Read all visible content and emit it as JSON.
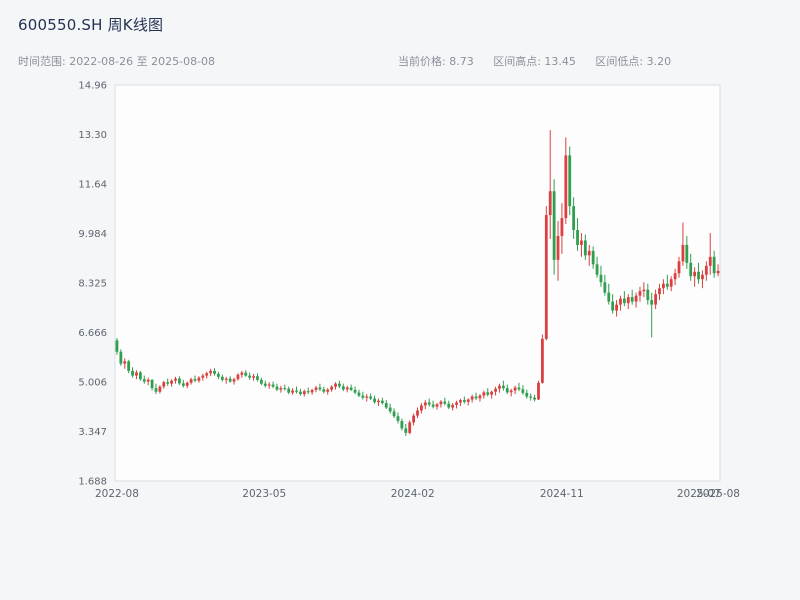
{
  "header": {
    "title": "600550.SH 周K线图",
    "date_range": "时间范围: 2022-08-26 至 2025-08-08",
    "current_price": "当前价格: 8.73",
    "range_high": "区间高点: 13.45",
    "range_low": "区间低点: 3.20"
  },
  "chart_data": {
    "type": "candlestick",
    "title": "600550.SH 周K线图",
    "interval": "weekly",
    "start_date": "2022-08-26",
    "end_date": "2025-08-08",
    "current_price": 8.73,
    "range_high": 13.45,
    "range_low": 3.2,
    "ylim": [
      1.688,
      14.96
    ],
    "y_ticks": [
      {
        "label": "14.96",
        "value": 14.96
      },
      {
        "label": "13.30",
        "value": 13.3
      },
      {
        "label": "11.64",
        "value": 11.64
      },
      {
        "label": "9.984",
        "value": 9.984
      },
      {
        "label": "8.325",
        "value": 8.325
      },
      {
        "label": "6.666",
        "value": 6.666
      },
      {
        "label": "5.006",
        "value": 5.006
      },
      {
        "label": "3.347",
        "value": 3.347
      },
      {
        "label": "1.688",
        "value": 1.688
      }
    ],
    "x_ticks": [
      {
        "label": "2022-08",
        "pos": 0.0
      },
      {
        "label": "2023-05",
        "pos": 0.245
      },
      {
        "label": "2024-02",
        "pos": 0.492
      },
      {
        "label": "2024-11",
        "pos": 0.74
      },
      {
        "label": "2025-07",
        "pos": 0.968
      },
      {
        "label": "2025-08",
        "pos": 1.0
      }
    ],
    "up_color": "#db4040",
    "down_color": "#2f9e4f",
    "axis_color": "#5c6670",
    "plot_bg": "#fdfdfe",
    "plot_border": "#d8dce2",
    "candles": [
      [
        6.4,
        6.48,
        5.92,
        6.02
      ],
      [
        6.02,
        6.1,
        5.55,
        5.62
      ],
      [
        5.62,
        5.8,
        5.45,
        5.7
      ],
      [
        5.7,
        5.75,
        5.3,
        5.38
      ],
      [
        5.38,
        5.5,
        5.15,
        5.22
      ],
      [
        5.22,
        5.4,
        5.1,
        5.33
      ],
      [
        5.33,
        5.38,
        5.05,
        5.1
      ],
      [
        5.1,
        5.22,
        4.95,
        5.02
      ],
      [
        5.02,
        5.15,
        4.9,
        5.08
      ],
      [
        5.08,
        5.1,
        4.72,
        4.8
      ],
      [
        4.8,
        4.95,
        4.6,
        4.68
      ],
      [
        4.68,
        4.9,
        4.62,
        4.85
      ],
      [
        4.85,
        5.05,
        4.78,
        5.0
      ],
      [
        5.0,
        5.12,
        4.88,
        4.95
      ],
      [
        4.95,
        5.1,
        4.85,
        5.05
      ],
      [
        5.05,
        5.18,
        4.95,
        5.12
      ],
      [
        5.12,
        5.2,
        4.9,
        4.96
      ],
      [
        4.96,
        5.08,
        4.82,
        4.88
      ],
      [
        4.88,
        5.02,
        4.8,
        4.98
      ],
      [
        4.98,
        5.15,
        4.92,
        5.1
      ],
      [
        5.1,
        5.22,
        5.0,
        5.05
      ],
      [
        5.05,
        5.2,
        4.98,
        5.15
      ],
      [
        5.15,
        5.28,
        5.05,
        5.22
      ],
      [
        5.22,
        5.35,
        5.12,
        5.3
      ],
      [
        5.3,
        5.45,
        5.2,
        5.38
      ],
      [
        5.38,
        5.47,
        5.22,
        5.28
      ],
      [
        5.28,
        5.35,
        5.1,
        5.18
      ],
      [
        5.18,
        5.25,
        5.02,
        5.08
      ],
      [
        5.08,
        5.18,
        4.95,
        5.12
      ],
      [
        5.12,
        5.2,
        4.98,
        5.02
      ],
      [
        5.02,
        5.15,
        4.92,
        5.1
      ],
      [
        5.1,
        5.3,
        5.05,
        5.25
      ],
      [
        5.25,
        5.38,
        5.15,
        5.32
      ],
      [
        5.32,
        5.4,
        5.18,
        5.22
      ],
      [
        5.22,
        5.32,
        5.08,
        5.15
      ],
      [
        5.15,
        5.28,
        5.05,
        5.2
      ],
      [
        5.2,
        5.3,
        5.02,
        5.08
      ],
      [
        5.08,
        5.15,
        4.9,
        4.95
      ],
      [
        4.95,
        5.05,
        4.82,
        4.88
      ],
      [
        4.88,
        5.0,
        4.78,
        4.92
      ],
      [
        4.92,
        5.02,
        4.8,
        4.85
      ],
      [
        4.85,
        4.95,
        4.7,
        4.75
      ],
      [
        4.75,
        4.88,
        4.65,
        4.8
      ],
      [
        4.8,
        4.92,
        4.72,
        4.78
      ],
      [
        4.78,
        4.85,
        4.6,
        4.65
      ],
      [
        4.65,
        4.8,
        4.58,
        4.72
      ],
      [
        4.72,
        4.85,
        4.62,
        4.68
      ],
      [
        4.68,
        4.78,
        4.55,
        4.6
      ],
      [
        4.6,
        4.75,
        4.52,
        4.7
      ],
      [
        4.7,
        4.82,
        4.6,
        4.66
      ],
      [
        4.66,
        4.78,
        4.58,
        4.74
      ],
      [
        4.74,
        4.88,
        4.66,
        4.82
      ],
      [
        4.82,
        4.95,
        4.7,
        4.76
      ],
      [
        4.76,
        4.85,
        4.62,
        4.68
      ],
      [
        4.68,
        4.8,
        4.58,
        4.75
      ],
      [
        4.75,
        4.9,
        4.68,
        4.85
      ],
      [
        4.85,
        5.0,
        4.75,
        4.95
      ],
      [
        4.95,
        5.05,
        4.8,
        4.86
      ],
      [
        4.86,
        4.95,
        4.7,
        4.76
      ],
      [
        4.76,
        4.88,
        4.66,
        4.82
      ],
      [
        4.82,
        4.92,
        4.7,
        4.74
      ],
      [
        4.74,
        4.85,
        4.6,
        4.65
      ],
      [
        4.65,
        4.75,
        4.5,
        4.55
      ],
      [
        4.55,
        4.68,
        4.42,
        4.48
      ],
      [
        4.48,
        4.6,
        4.35,
        4.52
      ],
      [
        4.52,
        4.62,
        4.4,
        4.45
      ],
      [
        4.45,
        4.55,
        4.28,
        4.33
      ],
      [
        4.33,
        4.45,
        4.2,
        4.38
      ],
      [
        4.38,
        4.48,
        4.25,
        4.3
      ],
      [
        4.3,
        4.4,
        4.1,
        4.15
      ],
      [
        4.15,
        4.28,
        3.95,
        4.02
      ],
      [
        4.02,
        4.12,
        3.8,
        3.86
      ],
      [
        3.86,
        3.98,
        3.62,
        3.7
      ],
      [
        3.7,
        3.78,
        3.38,
        3.45
      ],
      [
        3.45,
        3.6,
        3.2,
        3.3
      ],
      [
        3.3,
        3.72,
        3.25,
        3.65
      ],
      [
        3.65,
        3.95,
        3.55,
        3.88
      ],
      [
        3.88,
        4.15,
        3.8,
        4.05
      ],
      [
        4.05,
        4.3,
        3.95,
        4.22
      ],
      [
        4.22,
        4.4,
        4.1,
        4.32
      ],
      [
        4.32,
        4.45,
        4.18,
        4.25
      ],
      [
        4.25,
        4.38,
        4.12,
        4.18
      ],
      [
        4.18,
        4.3,
        4.08,
        4.26
      ],
      [
        4.26,
        4.4,
        4.15,
        4.35
      ],
      [
        4.35,
        4.48,
        4.22,
        4.28
      ],
      [
        4.28,
        4.38,
        4.1,
        4.15
      ],
      [
        4.15,
        4.3,
        4.05,
        4.24
      ],
      [
        4.24,
        4.38,
        4.12,
        4.32
      ],
      [
        4.32,
        4.45,
        4.2,
        4.4
      ],
      [
        4.4,
        4.52,
        4.28,
        4.34
      ],
      [
        4.34,
        4.46,
        4.22,
        4.42
      ],
      [
        4.42,
        4.58,
        4.32,
        4.52
      ],
      [
        4.52,
        4.65,
        4.4,
        4.46
      ],
      [
        4.46,
        4.6,
        4.35,
        4.55
      ],
      [
        4.55,
        4.72,
        4.45,
        4.66
      ],
      [
        4.66,
        4.8,
        4.52,
        4.58
      ],
      [
        4.58,
        4.72,
        4.45,
        4.68
      ],
      [
        4.68,
        4.85,
        4.55,
        4.78
      ],
      [
        4.78,
        4.95,
        4.65,
        4.88
      ],
      [
        4.88,
        5.05,
        4.72,
        4.8
      ],
      [
        4.8,
        4.92,
        4.6,
        4.66
      ],
      [
        4.66,
        4.78,
        4.52,
        4.72
      ],
      [
        4.72,
        4.88,
        4.6,
        4.82
      ],
      [
        4.82,
        4.98,
        4.7,
        4.76
      ],
      [
        4.76,
        4.9,
        4.58,
        4.64
      ],
      [
        4.64,
        4.75,
        4.45,
        4.52
      ],
      [
        4.52,
        4.62,
        4.38,
        4.48
      ],
      [
        4.48,
        4.58,
        4.35,
        4.42
      ],
      [
        4.42,
        5.05,
        4.4,
        4.98
      ],
      [
        4.98,
        6.6,
        4.95,
        6.45
      ],
      [
        6.45,
        10.9,
        6.4,
        10.6
      ],
      [
        10.6,
        13.45,
        9.8,
        11.4
      ],
      [
        11.4,
        11.8,
        8.6,
        9.1
      ],
      [
        9.1,
        10.4,
        8.4,
        9.9
      ],
      [
        9.9,
        11.0,
        9.3,
        10.5
      ],
      [
        10.5,
        13.2,
        10.3,
        12.6
      ],
      [
        12.6,
        12.9,
        10.6,
        10.9
      ],
      [
        10.9,
        11.2,
        9.8,
        10.1
      ],
      [
        10.1,
        10.5,
        9.4,
        9.6
      ],
      [
        9.6,
        10.0,
        9.2,
        9.75
      ],
      [
        9.75,
        9.95,
        9.1,
        9.25
      ],
      [
        9.25,
        9.6,
        8.9,
        9.4
      ],
      [
        9.4,
        9.55,
        8.8,
        8.95
      ],
      [
        8.95,
        9.2,
        8.5,
        8.6
      ],
      [
        8.6,
        8.9,
        8.2,
        8.35
      ],
      [
        8.35,
        8.6,
        7.9,
        8.0
      ],
      [
        8.0,
        8.3,
        7.6,
        7.7
      ],
      [
        7.7,
        7.95,
        7.3,
        7.4
      ],
      [
        7.4,
        7.75,
        7.2,
        7.6
      ],
      [
        7.6,
        7.9,
        7.4,
        7.8
      ],
      [
        7.8,
        8.05,
        7.55,
        7.65
      ],
      [
        7.65,
        7.95,
        7.45,
        7.85
      ],
      [
        7.85,
        8.1,
        7.6,
        7.7
      ],
      [
        7.7,
        8.0,
        7.5,
        7.9
      ],
      [
        7.9,
        8.2,
        7.7,
        8.05
      ],
      [
        8.05,
        8.35,
        7.85,
        8.1
      ],
      [
        8.1,
        8.3,
        7.6,
        7.75
      ],
      [
        7.75,
        8.0,
        6.5,
        7.6
      ],
      [
        7.6,
        8.1,
        7.45,
        7.95
      ],
      [
        7.95,
        8.3,
        7.75,
        8.15
      ],
      [
        8.15,
        8.45,
        7.95,
        8.3
      ],
      [
        8.3,
        8.6,
        8.1,
        8.2
      ],
      [
        8.2,
        8.55,
        8.05,
        8.45
      ],
      [
        8.45,
        8.8,
        8.25,
        8.65
      ],
      [
        8.65,
        9.2,
        8.5,
        9.05
      ],
      [
        9.05,
        10.35,
        8.9,
        9.6
      ],
      [
        9.6,
        9.9,
        8.8,
        9.0
      ],
      [
        9.0,
        9.3,
        8.4,
        8.55
      ],
      [
        8.55,
        8.85,
        8.2,
        8.7
      ],
      [
        8.7,
        9.0,
        8.3,
        8.45
      ],
      [
        8.45,
        8.75,
        8.15,
        8.6
      ],
      [
        8.6,
        9.05,
        8.4,
        8.9
      ],
      [
        8.9,
        10.0,
        8.6,
        9.2
      ],
      [
        9.2,
        9.4,
        8.5,
        8.65
      ],
      [
        8.65,
        8.95,
        8.55,
        8.73
      ]
    ]
  }
}
